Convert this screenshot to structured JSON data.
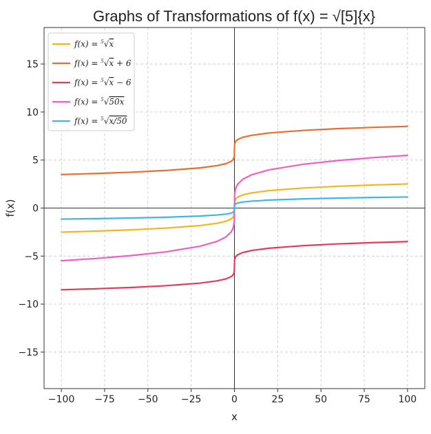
{
  "chart_data": {
    "type": "line",
    "title": "Graphs of Transformations of f(x) = √[5]{x}",
    "xlabel": "x",
    "ylabel": "f(x)",
    "xlim": [
      -110,
      110
    ],
    "ylim": [
      -18.8,
      18.8
    ],
    "x_ticks": [
      -100,
      -75,
      -50,
      -25,
      0,
      25,
      50,
      75,
      100
    ],
    "y_ticks": [
      -15,
      -10,
      -5,
      0,
      5,
      10,
      15
    ],
    "x_tick_labels": [
      "−100",
      "−75",
      "−50",
      "−25",
      "0",
      "25",
      "50",
      "75",
      "100"
    ],
    "y_tick_labels": [
      "−15",
      "−10",
      "−5",
      "0",
      "5",
      "10",
      "15"
    ],
    "grid": true,
    "legend_position": "top-left",
    "x": [
      -100,
      -80,
      -60,
      -40,
      -20,
      -10,
      -5,
      -2,
      -1,
      -0.5,
      -0.1,
      0,
      0.1,
      0.5,
      1,
      2,
      5,
      10,
      20,
      40,
      60,
      80,
      100
    ],
    "series": [
      {
        "name": "f(x) = ⁵√x",
        "color": "#f5b41a",
        "values": [
          -2.51,
          -2.4,
          -2.27,
          -2.09,
          -1.82,
          -1.58,
          -1.38,
          -1.15,
          -1.0,
          -0.87,
          -0.63,
          0,
          0.63,
          0.87,
          1.0,
          1.15,
          1.38,
          1.58,
          1.82,
          2.09,
          2.27,
          2.4,
          2.51
        ]
      },
      {
        "name": "f(x) = ⁵√x + 6",
        "color": "#ee6c2b",
        "values": [
          3.49,
          3.6,
          3.73,
          3.91,
          4.18,
          4.42,
          4.62,
          4.85,
          5.0,
          5.13,
          5.37,
          6,
          6.63,
          6.87,
          7.0,
          7.15,
          7.38,
          7.58,
          7.82,
          8.09,
          8.27,
          8.4,
          8.51
        ]
      },
      {
        "name": "f(x) = ⁵√x − 6",
        "color": "#e63955",
        "values": [
          -8.51,
          -8.4,
          -8.27,
          -8.09,
          -7.82,
          -7.58,
          -7.38,
          -7.15,
          -7.0,
          -6.87,
          -6.63,
          -6,
          -5.37,
          -5.13,
          -5.0,
          -4.85,
          -4.62,
          -4.42,
          -4.18,
          -3.91,
          -3.73,
          -3.6,
          -3.49
        ]
      },
      {
        "name": "f(x) = ⁵√50x",
        "color": "#f25cc8",
        "values": [
          -5.49,
          -5.25,
          -4.95,
          -4.57,
          -3.98,
          -3.47,
          -3.02,
          -2.51,
          -2.19,
          -1.9,
          -1.38,
          0,
          1.38,
          1.9,
          2.19,
          2.51,
          3.02,
          3.47,
          3.98,
          4.57,
          4.95,
          5.25,
          5.49
        ]
      },
      {
        "name": "f(x) = ⁵√x/50",
        "color": "#3cb4f0",
        "values": [
          -1.15,
          -1.1,
          -1.04,
          -0.96,
          -0.83,
          -0.72,
          -0.63,
          -0.53,
          -0.46,
          -0.4,
          -0.29,
          0,
          0.29,
          0.4,
          0.46,
          0.53,
          0.63,
          0.72,
          0.83,
          0.96,
          1.04,
          1.1,
          1.15
        ]
      }
    ],
    "legend": [
      {
        "base": "f(x) = ",
        "index": "5",
        "radicand": "x",
        "suffix": "",
        "color": "#f5b41a"
      },
      {
        "base": "f(x) = ",
        "index": "5",
        "radicand": "x",
        "suffix": " + 6",
        "color": "#ee6c2b"
      },
      {
        "base": "f(x) = ",
        "index": "5",
        "radicand": "x",
        "suffix": " − 6",
        "color": "#e63955"
      },
      {
        "base": "f(x) = ",
        "index": "5",
        "radicand": "50x",
        "suffix": "",
        "color": "#f25cc8"
      },
      {
        "base": "f(x) = ",
        "index": "5",
        "radicand": "x/50",
        "suffix": "",
        "color": "#3cb4f0"
      }
    ]
  }
}
